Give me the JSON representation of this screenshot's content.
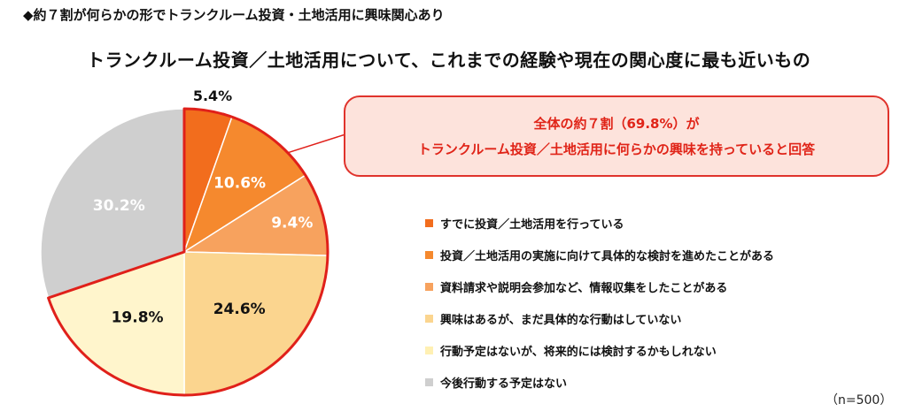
{
  "headline": "◆約７割が何らかの形でトランクルーム投資・土地活用に興味関心あり",
  "callout": {
    "line1": "全体の約７割（69.8%）が",
    "line2": "トランクルーム投資／土地活用に何らかの興味を持っていると回答"
  },
  "note": "（n=500）",
  "colors": {
    "highlight_border": "#e0201a",
    "callout_fill": "#fde3dc",
    "callout_text": "#e02418"
  },
  "chart_data": {
    "type": "pie",
    "title": "トランクルーム投資／土地活用について、これまでの経験や現在の関心度に最も近いもの",
    "start": "12 o'clock, clockwise",
    "legend_position": "right",
    "slices": [
      {
        "label": "すでに投資／土地活用を行っている",
        "value": 5.4,
        "display": "5.4%",
        "color": "#f26d1d"
      },
      {
        "label": "投資／土地活用の実施に向けて具体的な検討を進めたことがある",
        "value": 10.6,
        "display": "10.6%",
        "color": "#f5892e"
      },
      {
        "label": "資料請求や説明会参加など、情報収集をしたことがある",
        "value": 9.4,
        "display": "9.4%",
        "color": "#f7a25e"
      },
      {
        "label": "興味はあるが、まだ具体的な行動はしていない",
        "value": 24.6,
        "display": "24.6%",
        "color": "#fbd58f"
      },
      {
        "label": "行動予定はないが、将来的には検討するかもしれない",
        "value": 19.8,
        "display": "19.8%",
        "color": "#fff5cc"
      },
      {
        "label": "今後行動する予定はない",
        "value": 30.2,
        "display": "30.2%",
        "color": "#cfcfcf"
      }
    ],
    "highlighted_share": 69.8
  }
}
